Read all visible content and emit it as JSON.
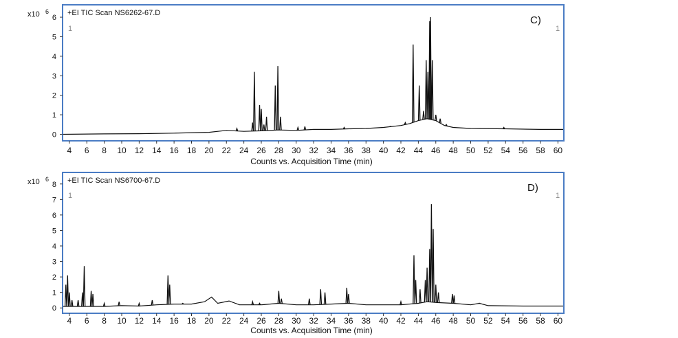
{
  "chart_data": [
    {
      "type": "line",
      "panel_label": "C)",
      "title": "+EI TIC Scan NS6262-67.D",
      "y_multiplier": "x10",
      "y_exponent": "6",
      "xlabel": "Counts vs. Acquisition Time (min)",
      "corner_marks": [
        "1",
        "1"
      ],
      "xlim": [
        3.3,
        60.6
      ],
      "ylim": [
        -0.3,
        6.6
      ],
      "x_ticks": [
        4,
        6,
        8,
        10,
        12,
        14,
        16,
        18,
        20,
        22,
        24,
        26,
        28,
        30,
        32,
        34,
        36,
        38,
        40,
        42,
        44,
        46,
        48,
        50,
        52,
        54,
        56,
        58,
        60
      ],
      "y_ticks": [
        0,
        1,
        2,
        3,
        4,
        5,
        6
      ],
      "line_color": "#111111",
      "frame_color": "#4a7cc4",
      "baseline": [
        [
          3.3,
          0.0
        ],
        [
          8,
          0.02
        ],
        [
          12,
          0.03
        ],
        [
          16,
          0.06
        ],
        [
          20,
          0.1
        ],
        [
          22,
          0.2
        ],
        [
          24,
          0.15
        ],
        [
          26,
          0.18
        ],
        [
          28,
          0.22
        ],
        [
          30,
          0.2
        ],
        [
          32,
          0.25
        ],
        [
          34,
          0.25
        ],
        [
          36,
          0.28
        ],
        [
          38,
          0.3
        ],
        [
          40,
          0.35
        ],
        [
          42,
          0.45
        ],
        [
          43,
          0.55
        ],
        [
          44,
          0.7
        ],
        [
          45,
          0.8
        ],
        [
          46,
          0.7
        ],
        [
          47,
          0.45
        ],
        [
          48,
          0.35
        ],
        [
          50,
          0.3
        ],
        [
          54,
          0.28
        ],
        [
          58,
          0.25
        ],
        [
          60.6,
          0.25
        ]
      ],
      "peaks": [
        {
          "x": 23.2,
          "y": 0.3
        },
        {
          "x": 25.0,
          "y": 0.6
        },
        {
          "x": 25.2,
          "y": 3.2
        },
        {
          "x": 25.8,
          "y": 1.5
        },
        {
          "x": 26.0,
          "y": 1.3
        },
        {
          "x": 26.3,
          "y": 0.5
        },
        {
          "x": 26.6,
          "y": 0.9
        },
        {
          "x": 27.6,
          "y": 2.5
        },
        {
          "x": 27.9,
          "y": 3.5
        },
        {
          "x": 28.2,
          "y": 0.9
        },
        {
          "x": 30.2,
          "y": 0.35
        },
        {
          "x": 31.0,
          "y": 0.4
        },
        {
          "x": 35.5,
          "y": 0.35
        },
        {
          "x": 40.8,
          "y": 0.4
        },
        {
          "x": 42.5,
          "y": 0.6
        },
        {
          "x": 43.4,
          "y": 4.6
        },
        {
          "x": 44.1,
          "y": 2.5
        },
        {
          "x": 44.6,
          "y": 1.2
        },
        {
          "x": 44.9,
          "y": 3.8
        },
        {
          "x": 45.1,
          "y": 3.2
        },
        {
          "x": 45.3,
          "y": 5.8
        },
        {
          "x": 45.4,
          "y": 6.0
        },
        {
          "x": 45.6,
          "y": 3.8
        },
        {
          "x": 46.0,
          "y": 1.0
        },
        {
          "x": 46.5,
          "y": 0.8
        },
        {
          "x": 47.2,
          "y": 0.5
        },
        {
          "x": 53.8,
          "y": 0.35
        }
      ]
    },
    {
      "type": "line",
      "panel_label": "D)",
      "title": "+EI TIC Scan NS6700-67.D",
      "y_multiplier": "x10",
      "y_exponent": "6",
      "xlabel": "Counts vs. Acquisition Time (min)",
      "corner_marks": [
        "1",
        "1"
      ],
      "xlim": [
        3.3,
        60.6
      ],
      "ylim": [
        -0.3,
        8.7
      ],
      "x_ticks": [
        4,
        6,
        8,
        10,
        12,
        14,
        16,
        18,
        20,
        22,
        24,
        26,
        28,
        30,
        32,
        34,
        36,
        38,
        40,
        42,
        44,
        46,
        48,
        50,
        52,
        54,
        56,
        58,
        60
      ],
      "y_ticks": [
        0,
        1,
        2,
        3,
        4,
        5,
        6,
        7,
        8
      ],
      "line_color": "#111111",
      "frame_color": "#4a7cc4",
      "baseline": [
        [
          3.3,
          0.1
        ],
        [
          5,
          0.1
        ],
        [
          8,
          0.1
        ],
        [
          10,
          0.15
        ],
        [
          12,
          0.12
        ],
        [
          14,
          0.2
        ],
        [
          16,
          0.25
        ],
        [
          18,
          0.25
        ],
        [
          19.5,
          0.4
        ],
        [
          20.3,
          0.7
        ],
        [
          21,
          0.3
        ],
        [
          22.3,
          0.45
        ],
        [
          23.5,
          0.2
        ],
        [
          26,
          0.2
        ],
        [
          28,
          0.3
        ],
        [
          30,
          0.2
        ],
        [
          32,
          0.2
        ],
        [
          34,
          0.25
        ],
        [
          36,
          0.3
        ],
        [
          38,
          0.2
        ],
        [
          40,
          0.2
        ],
        [
          42,
          0.2
        ],
        [
          44,
          0.3
        ],
        [
          45,
          0.4
        ],
        [
          46,
          0.35
        ],
        [
          48,
          0.3
        ],
        [
          50,
          0.2
        ],
        [
          51,
          0.3
        ],
        [
          52,
          0.15
        ],
        [
          56,
          0.12
        ],
        [
          60.6,
          0.12
        ]
      ],
      "peaks": [
        {
          "x": 3.6,
          "y": 1.5
        },
        {
          "x": 3.8,
          "y": 2.1
        },
        {
          "x": 4.0,
          "y": 1.0
        },
        {
          "x": 4.3,
          "y": 0.5
        },
        {
          "x": 5.0,
          "y": 0.5
        },
        {
          "x": 5.5,
          "y": 1.0
        },
        {
          "x": 5.7,
          "y": 2.7
        },
        {
          "x": 6.5,
          "y": 1.1
        },
        {
          "x": 6.7,
          "y": 0.9
        },
        {
          "x": 8.0,
          "y": 0.3
        },
        {
          "x": 9.7,
          "y": 0.4
        },
        {
          "x": 12.0,
          "y": 0.3
        },
        {
          "x": 13.5,
          "y": 0.5
        },
        {
          "x": 15.3,
          "y": 2.1
        },
        {
          "x": 15.5,
          "y": 1.5
        },
        {
          "x": 17.0,
          "y": 0.3
        },
        {
          "x": 25.0,
          "y": 0.4
        },
        {
          "x": 25.8,
          "y": 0.3
        },
        {
          "x": 28.0,
          "y": 1.1
        },
        {
          "x": 28.3,
          "y": 0.6
        },
        {
          "x": 31.5,
          "y": 0.6
        },
        {
          "x": 32.8,
          "y": 1.2
        },
        {
          "x": 33.3,
          "y": 1.0
        },
        {
          "x": 35.8,
          "y": 1.3
        },
        {
          "x": 36.0,
          "y": 0.9
        },
        {
          "x": 42.0,
          "y": 0.4
        },
        {
          "x": 43.5,
          "y": 3.4
        },
        {
          "x": 43.7,
          "y": 1.8
        },
        {
          "x": 44.2,
          "y": 1.2
        },
        {
          "x": 44.8,
          "y": 1.8
        },
        {
          "x": 45.0,
          "y": 2.6
        },
        {
          "x": 45.3,
          "y": 3.8
        },
        {
          "x": 45.5,
          "y": 6.7
        },
        {
          "x": 45.7,
          "y": 5.1
        },
        {
          "x": 46.0,
          "y": 1.5
        },
        {
          "x": 46.3,
          "y": 1.0
        },
        {
          "x": 47.9,
          "y": 0.9
        },
        {
          "x": 48.1,
          "y": 0.8
        },
        {
          "x": 51.0,
          "y": 0.3
        }
      ]
    }
  ]
}
